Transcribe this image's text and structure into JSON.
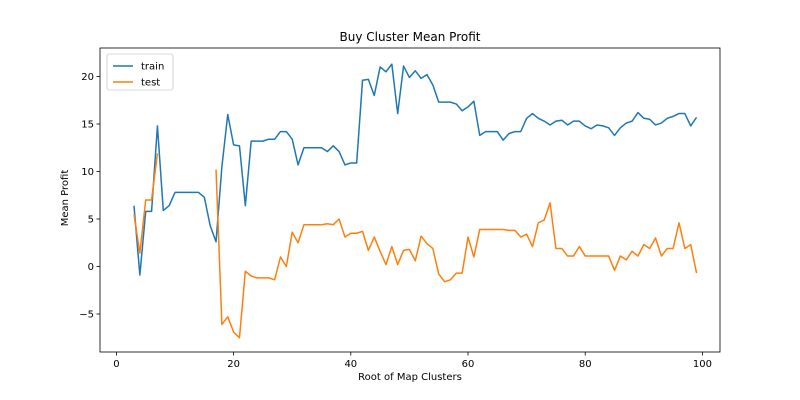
{
  "chart_data": {
    "type": "line",
    "title": "Buy Cluster Mean Profit",
    "xlabel": "Root of Map Clusters",
    "ylabel": "Mean Profit",
    "xlim": [
      -2.8,
      103
    ],
    "ylim": [
      -9.0,
      23.0
    ],
    "xticks": [
      0,
      20,
      40,
      60,
      80,
      100
    ],
    "yticks": [
      -5,
      0,
      5,
      10,
      15,
      20
    ],
    "grid": false,
    "legend_position": "top-left",
    "colors": {
      "train": "#1f77b4",
      "test": "#ff7f0e"
    },
    "series": [
      {
        "name": "train",
        "x": [
          3,
          4,
          5,
          6,
          7,
          8,
          9,
          10,
          11,
          12,
          13,
          14,
          15,
          16,
          17,
          18,
          19,
          20,
          21,
          22,
          23,
          24,
          25,
          26,
          27,
          28,
          29,
          30,
          31,
          32,
          33,
          34,
          35,
          36,
          37,
          38,
          39,
          40,
          41,
          42,
          43,
          44,
          45,
          46,
          47,
          48,
          49,
          50,
          51,
          52,
          53,
          54,
          55,
          56,
          57,
          58,
          59,
          60,
          61,
          62,
          63,
          64,
          65,
          66,
          67,
          68,
          69,
          70,
          71,
          72,
          73,
          74,
          75,
          76,
          77,
          78,
          79,
          80,
          81,
          82,
          83,
          84,
          85,
          86,
          87,
          88,
          89,
          90,
          91,
          92,
          93,
          94,
          95,
          96,
          97,
          98,
          99
        ],
        "values": [
          6.4,
          -0.9,
          5.8,
          5.8,
          14.8,
          5.9,
          6.4,
          7.8,
          7.8,
          7.8,
          7.8,
          7.8,
          7.3,
          4.3,
          2.6,
          10.5,
          16.0,
          12.8,
          12.7,
          6.4,
          13.2,
          13.2,
          13.2,
          13.4,
          13.4,
          14.2,
          14.2,
          13.4,
          10.7,
          12.5,
          12.5,
          12.5,
          12.5,
          12.1,
          12.7,
          12.1,
          10.7,
          10.9,
          10.9,
          19.6,
          19.7,
          18.0,
          21.0,
          20.5,
          21.3,
          16.1,
          21.1,
          19.9,
          20.6,
          19.8,
          20.2,
          19.1,
          17.3,
          17.3,
          17.3,
          17.1,
          16.4,
          16.8,
          17.4,
          13.8,
          14.2,
          14.2,
          14.2,
          13.3,
          14.0,
          14.2,
          14.2,
          15.6,
          16.1,
          15.6,
          15.3,
          14.9,
          15.3,
          15.4,
          14.9,
          15.3,
          15.3,
          14.8,
          14.5,
          14.9,
          14.8,
          14.6,
          13.8,
          14.6,
          15.1,
          15.3,
          16.2,
          15.6,
          15.5,
          14.9,
          15.1,
          15.6,
          15.8,
          16.1,
          16.1,
          14.8,
          15.7
        ]
      },
      {
        "name": "test",
        "segments": [
          {
            "x": [
              3,
              4,
              5,
              6,
              7
            ],
            "values": [
              5.5,
              1.4,
              7.0,
              7.0,
              11.9
            ]
          },
          {
            "x": [
              17,
              18,
              19,
              20,
              21,
              22,
              23,
              24,
              25,
              26,
              27,
              28,
              29,
              30,
              31,
              32,
              33,
              34,
              35,
              36,
              37,
              38,
              39,
              40,
              41,
              42,
              43,
              44,
              45,
              46,
              47,
              48,
              49,
              50,
              51,
              52,
              53,
              54,
              55,
              56,
              57,
              58,
              59,
              60,
              61,
              62,
              63,
              64,
              65,
              66,
              67,
              68,
              69,
              70,
              71,
              72,
              73,
              74,
              75,
              76,
              77,
              78,
              79,
              80,
              81,
              82,
              83,
              84,
              85,
              86,
              87,
              88,
              89,
              90,
              91,
              92,
              93,
              94,
              95,
              96,
              97,
              98,
              99
            ],
            "values": [
              10.2,
              -6.1,
              -5.3,
              -6.9,
              -7.5,
              -0.5,
              -1.0,
              -1.2,
              -1.2,
              -1.2,
              -1.4,
              1.0,
              0.0,
              3.6,
              2.5,
              4.4,
              4.4,
              4.4,
              4.4,
              4.5,
              4.4,
              5.0,
              3.1,
              3.5,
              3.5,
              3.7,
              1.7,
              3.1,
              1.6,
              0.2,
              2.1,
              0.2,
              1.7,
              1.8,
              0.6,
              3.2,
              2.4,
              1.9,
              -0.8,
              -1.6,
              -1.4,
              -0.7,
              -0.7,
              3.1,
              1.0,
              3.9,
              3.9,
              3.9,
              3.9,
              3.9,
              3.8,
              3.8,
              3.1,
              3.4,
              2.1,
              4.6,
              4.9,
              6.7,
              1.9,
              1.9,
              1.1,
              1.1,
              2.1,
              1.1,
              1.1,
              1.1,
              1.1,
              1.1,
              -0.4,
              1.1,
              0.7,
              1.6,
              1.1,
              2.3,
              1.9,
              3.0,
              1.1,
              1.9,
              1.9,
              4.6,
              1.9,
              2.3,
              -0.7
            ]
          }
        ]
      }
    ]
  }
}
